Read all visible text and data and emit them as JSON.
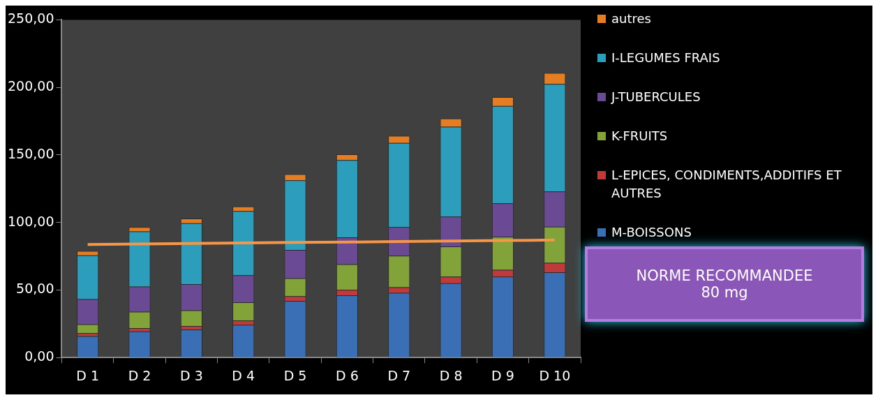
{
  "chart_data": {
    "type": "bar",
    "stacked": true,
    "legend": "right",
    "categories": [
      "D 1",
      "D 2",
      "D 3",
      "D 4",
      "D 5",
      "D 6",
      "D 7",
      "D 8",
      "D 9",
      "D 10"
    ],
    "ylim": [
      0,
      250
    ],
    "yticks": [
      {
        "value": 0,
        "label": "0,00"
      },
      {
        "value": 50,
        "label": "50,00"
      },
      {
        "value": 100,
        "label": "100,00"
      },
      {
        "value": 150,
        "label": "150,00"
      },
      {
        "value": 200,
        "label": "200,00"
      },
      {
        "value": 250,
        "label": "250,00"
      }
    ],
    "series": [
      {
        "name": "M-BOISSONS",
        "color": "#3a6fb5",
        "values": [
          15.9,
          19.4,
          20.8,
          24.2,
          41.9,
          46.1,
          47.9,
          55.0,
          59.9,
          63.1
        ]
      },
      {
        "name": "L-EPICES, CONDIMENTS,ADDITIFS ET AUTRES",
        "color": "#c0393b",
        "values": [
          2.2,
          2.4,
          2.6,
          3.3,
          3.6,
          4.1,
          4.1,
          4.9,
          5.0,
          7.0
        ]
      },
      {
        "name": "K-FRUITS",
        "color": "#82a23a",
        "values": [
          6.6,
          12.2,
          11.6,
          13.4,
          13.3,
          18.9,
          23.4,
          22.4,
          24.6,
          26.8
        ]
      },
      {
        "name": "J-TUBERCULES",
        "color": "#6b4a94",
        "values": [
          18.5,
          18.5,
          19.3,
          20.0,
          20.9,
          19.9,
          21.2,
          22.0,
          24.7,
          26.1
        ]
      },
      {
        "name": "I-LEGUMES FRAIS",
        "color": "#2c9ebc",
        "values": [
          32.5,
          40.9,
          45.2,
          47.6,
          51.5,
          57.2,
          62.3,
          66.6,
          72.0,
          79.6
        ]
      },
      {
        "name": "autres",
        "color": "#e57d22",
        "values": [
          3.2,
          3.2,
          3.4,
          3.4,
          4.5,
          4.3,
          5.3,
          6.0,
          6.6,
          8.1
        ]
      },
      {
        "type": "line",
        "color": "#f79646",
        "marker": "none",
        "values": [
          83.7,
          84.1,
          84.4,
          84.8,
          85.2,
          85.5,
          85.9,
          86.3,
          86.6,
          87.0
        ]
      }
    ],
    "annotations": [
      "NORME RECOMMANDEE",
      "80 mg"
    ]
  }
}
